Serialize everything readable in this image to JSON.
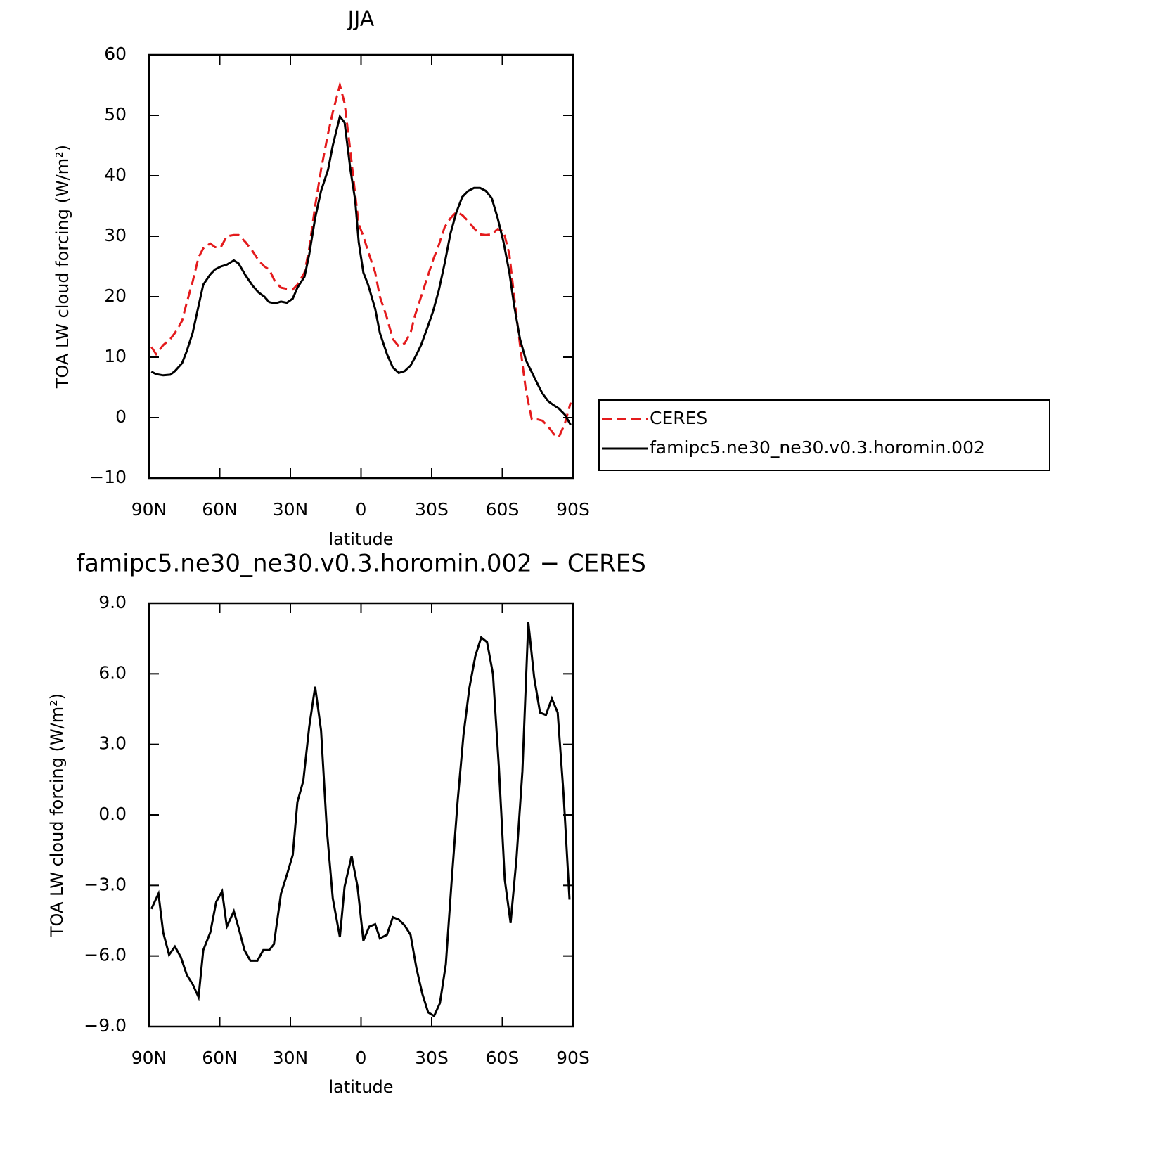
{
  "chart_data": [
    {
      "type": "line",
      "title": "JJA",
      "x_label": "latitude",
      "y_label": "TOA LW cloud forcing (W/m²)",
      "x": [
        89,
        87,
        84,
        81,
        79,
        76,
        74,
        71.5,
        69,
        67,
        64,
        62,
        59.5,
        57,
        54,
        52,
        49,
        46,
        43.5,
        41,
        39,
        36.5,
        34,
        31.5,
        29,
        27,
        24,
        22,
        19.5,
        17,
        14,
        12,
        9,
        7,
        4.5,
        2.5,
        1,
        -1,
        -3,
        -6,
        -8,
        -11,
        -13.5,
        -16,
        -18.5,
        -21,
        -23,
        -25.5,
        -28,
        -30.5,
        -33,
        -35.5,
        -38,
        -40.5,
        -43,
        -45.5,
        -48,
        -50.5,
        -53,
        -55.5,
        -58,
        -60.5,
        -63,
        -65,
        -67.5,
        -70,
        -72.5,
        -75,
        -77,
        -79.5,
        -82,
        -84,
        -86.5,
        -89
      ],
      "series": [
        {
          "name": "CERES",
          "color": "#e41a1c",
          "line_style": "dashed",
          "values": [
            11.7,
            10.5,
            12,
            13,
            14,
            16,
            19,
            22.5,
            26.5,
            28,
            28.8,
            28.2,
            28.2,
            30,
            30.2,
            30.2,
            29,
            27.5,
            26,
            25,
            24.5,
            22.5,
            21.5,
            21.3,
            21.2,
            22,
            24,
            28,
            35,
            41,
            47,
            50.5,
            55,
            52,
            44,
            37,
            32,
            30,
            27.5,
            24,
            20,
            16.5,
            13,
            11.8,
            12.3,
            14,
            17,
            20,
            23,
            26,
            28.5,
            31.5,
            33,
            34,
            33.5,
            32.5,
            31.3,
            30.3,
            30.2,
            30.3,
            31.2,
            30.8,
            27,
            20,
            12,
            4.5,
            -0.3,
            -0.3,
            -0.5,
            -1.5,
            -2.8,
            -3.2,
            -1,
            2.5
          ]
        },
        {
          "name": "famipc5.ne30_ne30.v0.3.horomin.002",
          "color": "#000000",
          "line_style": "solid",
          "values": [
            7.6,
            7.2,
            7.0,
            7.1,
            7.7,
            9.0,
            11,
            14,
            18.5,
            22,
            23.7,
            24.5,
            25,
            25.3,
            26,
            25.5,
            23.5,
            21.8,
            20.7,
            20,
            19.1,
            18.9,
            19.2,
            19.0,
            19.7,
            21.5,
            23.3,
            27,
            33,
            37.5,
            41,
            45,
            49.8,
            48.8,
            41,
            36,
            29,
            24,
            22,
            18,
            14,
            10.5,
            8.3,
            7.4,
            7.7,
            8.6,
            10,
            12,
            14.7,
            17.5,
            21,
            25.5,
            30.5,
            34,
            36.5,
            37.5,
            38,
            38,
            37.5,
            36.3,
            33,
            29,
            24,
            18.5,
            13,
            9.5,
            7.5,
            5.5,
            4,
            2.7,
            2,
            1.5,
            0.5,
            -1.2
          ]
        }
      ],
      "xlim": [
        90,
        -90
      ],
      "xticks": [
        {
          "value": 90,
          "label": "90N"
        },
        {
          "value": 60,
          "label": "60N"
        },
        {
          "value": 30,
          "label": "30N"
        },
        0,
        {
          "value": -30,
          "label": "30S"
        },
        {
          "value": -60,
          "label": "60S"
        },
        {
          "value": -90,
          "label": "90S"
        }
      ],
      "ylim": [
        -10,
        60
      ],
      "yticks": [
        {
          "value": -10,
          "label": "−10"
        },
        0,
        10,
        20,
        30,
        40,
        50,
        60
      ],
      "legend": "right"
    },
    {
      "type": "line",
      "title": "famipc5.ne30_ne30.v0.3.horomin.002 − CERES",
      "x_label": "latitude",
      "y_label": "TOA LW cloud forcing (W/m²)",
      "x": [
        89,
        86,
        84,
        81.5,
        79,
        76.5,
        74,
        71.5,
        69,
        67,
        64,
        61.5,
        59,
        57,
        54,
        52,
        49.5,
        47,
        44,
        41.5,
        39,
        37,
        34,
        31.5,
        29,
        27,
        24.5,
        22,
        19.5,
        17,
        14.5,
        12,
        9,
        7,
        4,
        1.5,
        -1,
        -3.5,
        -6,
        -8,
        -11,
        -13.5,
        -16,
        -18.5,
        -21,
        -23.5,
        -26,
        -28.5,
        -31,
        -33.5,
        -36,
        -38.5,
        -41,
        -43.5,
        -46,
        -48.5,
        -51,
        -53.5,
        -56,
        -58.5,
        -61,
        -63.5,
        -66,
        -68.5,
        -71,
        -73.5,
        -76,
        -78.5,
        -81,
        -83.5,
        -86,
        -88.5
      ],
      "values": [
        -4.0,
        -3.35,
        -5.0,
        -5.95,
        -5.6,
        -6.05,
        -6.8,
        -7.2,
        -7.75,
        -5.75,
        -5.0,
        -3.7,
        -3.25,
        -4.75,
        -4.1,
        -4.8,
        -5.75,
        -6.2,
        -6.2,
        -5.75,
        -5.75,
        -5.5,
        -3.35,
        -2.55,
        -1.7,
        0.55,
        1.45,
        3.75,
        5.45,
        3.6,
        -0.65,
        -3.55,
        -5.2,
        -3.05,
        -1.75,
        -3.05,
        -5.35,
        -4.75,
        -4.65,
        -5.25,
        -5.1,
        -4.35,
        -4.45,
        -4.7,
        -5.1,
        -6.5,
        -7.6,
        -8.4,
        -8.55,
        -8.0,
        -6.35,
        -2.75,
        0.55,
        3.4,
        5.4,
        6.75,
        7.55,
        7.35,
        6.0,
        2.05,
        -2.75,
        -4.6,
        -1.85,
        1.85,
        8.2,
        5.85,
        4.35,
        4.25,
        4.95,
        4.35,
        0.85,
        -3.6
      ],
      "color": "#000000",
      "line_style": "solid",
      "xlim": [
        90,
        -90
      ],
      "xticks": [
        {
          "value": 90,
          "label": "90N"
        },
        {
          "value": 60,
          "label": "60N"
        },
        {
          "value": 30,
          "label": "30N"
        },
        0,
        {
          "value": -30,
          "label": "30S"
        },
        {
          "value": -60,
          "label": "60S"
        },
        {
          "value": -90,
          "label": "90S"
        }
      ],
      "ylim": [
        -9,
        9
      ],
      "yticks": [
        {
          "value": -9,
          "label": "−9.0"
        },
        {
          "value": -6,
          "label": "−6.0"
        },
        {
          "value": -3,
          "label": "−3.0"
        },
        {
          "value": 0,
          "label": "0.0"
        },
        {
          "value": 3,
          "label": "3.0"
        },
        {
          "value": 6,
          "label": "6.0"
        },
        {
          "value": 9,
          "label": "9.0"
        }
      ]
    }
  ]
}
